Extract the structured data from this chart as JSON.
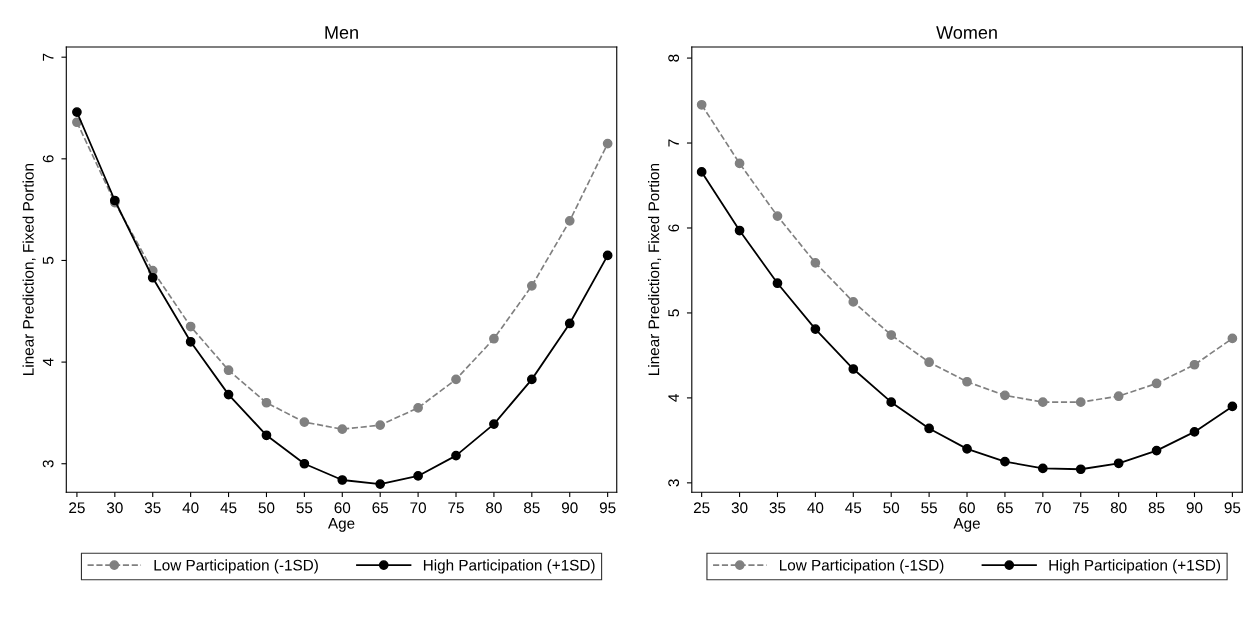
{
  "chart_data": [
    {
      "type": "line",
      "title": "Men",
      "xlabel": "Age",
      "ylabel": "Linear Prediction, Fixed Portion",
      "x": [
        25,
        30,
        35,
        40,
        45,
        50,
        55,
        60,
        65,
        70,
        75,
        80,
        85,
        90,
        95
      ],
      "xlim": [
        23.6,
        96.2
      ],
      "xticks": [
        25,
        30,
        35,
        40,
        45,
        50,
        55,
        60,
        65,
        70,
        75,
        80,
        85,
        90,
        95
      ],
      "ylim": [
        2.72,
        7.1
      ],
      "yticks": [
        3,
        4,
        5,
        6,
        7
      ],
      "legend": "bottom",
      "marker": "circle",
      "grid": false,
      "series": [
        {
          "name": "Low Participation (-1SD)",
          "color": "#808080",
          "line_style": "dashed",
          "values": [
            6.36,
            5.57,
            4.9,
            4.35,
            3.92,
            3.6,
            3.41,
            3.34,
            3.38,
            3.55,
            3.83,
            4.23,
            4.75,
            5.39,
            6.15
          ]
        },
        {
          "name": "High Participation (+1SD)",
          "color": "#000000",
          "line_style": "solid",
          "values": [
            6.46,
            5.59,
            4.83,
            4.2,
            3.68,
            3.28,
            3.0,
            2.84,
            2.8,
            2.88,
            3.08,
            3.39,
            3.83,
            4.38,
            5.05
          ]
        }
      ]
    },
    {
      "type": "line",
      "title": "Women",
      "xlabel": "Age",
      "ylabel": "Linear Prediction, Fixed Portion",
      "x": [
        25,
        30,
        35,
        40,
        45,
        50,
        55,
        60,
        65,
        70,
        75,
        80,
        85,
        90,
        95
      ],
      "xlim": [
        23.7,
        96.3
      ],
      "xticks": [
        25,
        30,
        35,
        40,
        45,
        50,
        55,
        60,
        65,
        70,
        75,
        80,
        85,
        90,
        95
      ],
      "ylim": [
        2.89,
        8.13
      ],
      "yticks": [
        3,
        4,
        5,
        6,
        7,
        8
      ],
      "legend": "bottom",
      "marker": "circle",
      "grid": false,
      "series": [
        {
          "name": "Low Participation (-1SD)",
          "color": "#808080",
          "line_style": "dashed",
          "values": [
            7.45,
            6.76,
            6.14,
            5.59,
            5.13,
            4.74,
            4.42,
            4.19,
            4.03,
            3.95,
            3.95,
            4.02,
            4.17,
            4.39,
            4.7
          ]
        },
        {
          "name": "High Participation (+1SD)",
          "color": "#000000",
          "line_style": "solid",
          "values": [
            6.66,
            5.97,
            5.35,
            4.81,
            4.34,
            3.95,
            3.64,
            3.4,
            3.25,
            3.17,
            3.16,
            3.23,
            3.38,
            3.6,
            3.9
          ]
        }
      ]
    }
  ]
}
